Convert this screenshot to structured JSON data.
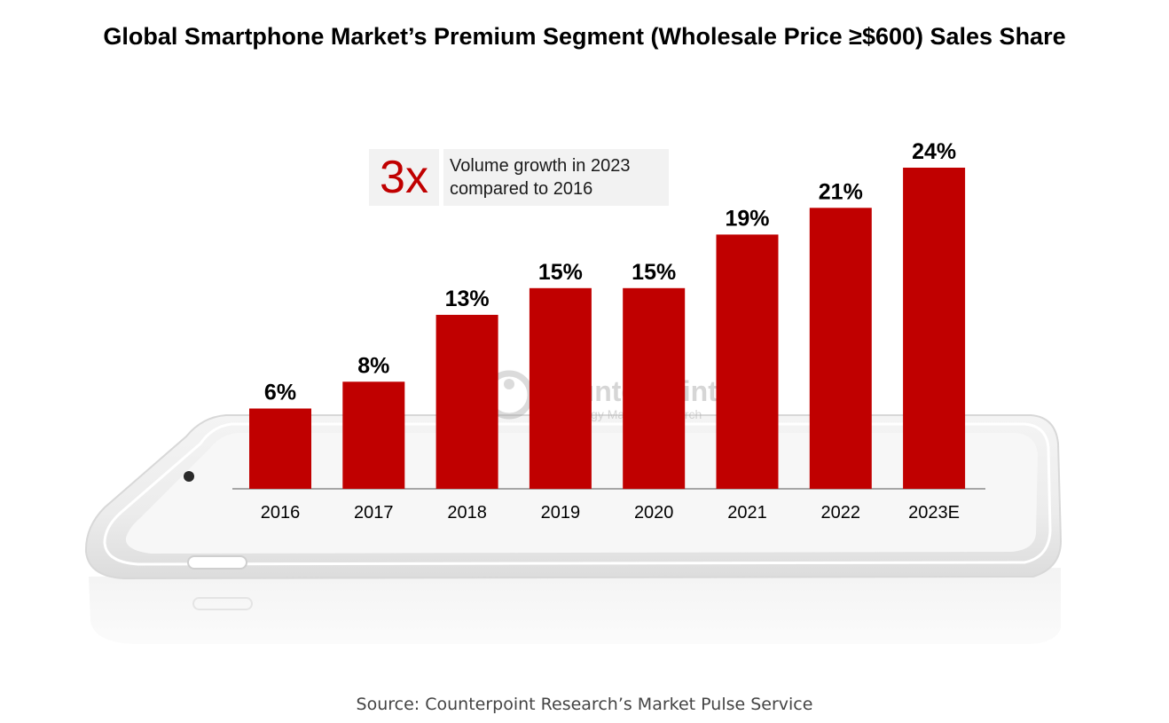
{
  "title": "Global Smartphone Market’s Premium Segment (Wholesale Price ≥$600) Sales Share",
  "callout": {
    "value": "3x",
    "line1": "Volume growth in 2023",
    "line2": "compared to 2016"
  },
  "watermark": {
    "brand": "Counterpoint",
    "tagline": "Technology Market Research"
  },
  "source": "Source: Counterpoint Research’s Market Pulse Service",
  "colors": {
    "bar": "#c00000",
    "callout_number": "#c00000",
    "background": "#ffffff"
  },
  "chart_data": {
    "type": "bar",
    "title": "Global Smartphone Market’s Premium Segment (Wholesale Price ≥$600) Sales Share",
    "categories": [
      "2016",
      "2017",
      "2018",
      "2019",
      "2020",
      "2021",
      "2022",
      "2023E"
    ],
    "values": [
      6,
      8,
      13,
      15,
      15,
      19,
      21,
      24
    ],
    "labels": [
      "6%",
      "8%",
      "13%",
      "15%",
      "15%",
      "19%",
      "21%",
      "24%"
    ],
    "unit": "%",
    "xlabel": "",
    "ylabel": "",
    "ylim": [
      0,
      24
    ],
    "grid": false,
    "legend": "none"
  }
}
